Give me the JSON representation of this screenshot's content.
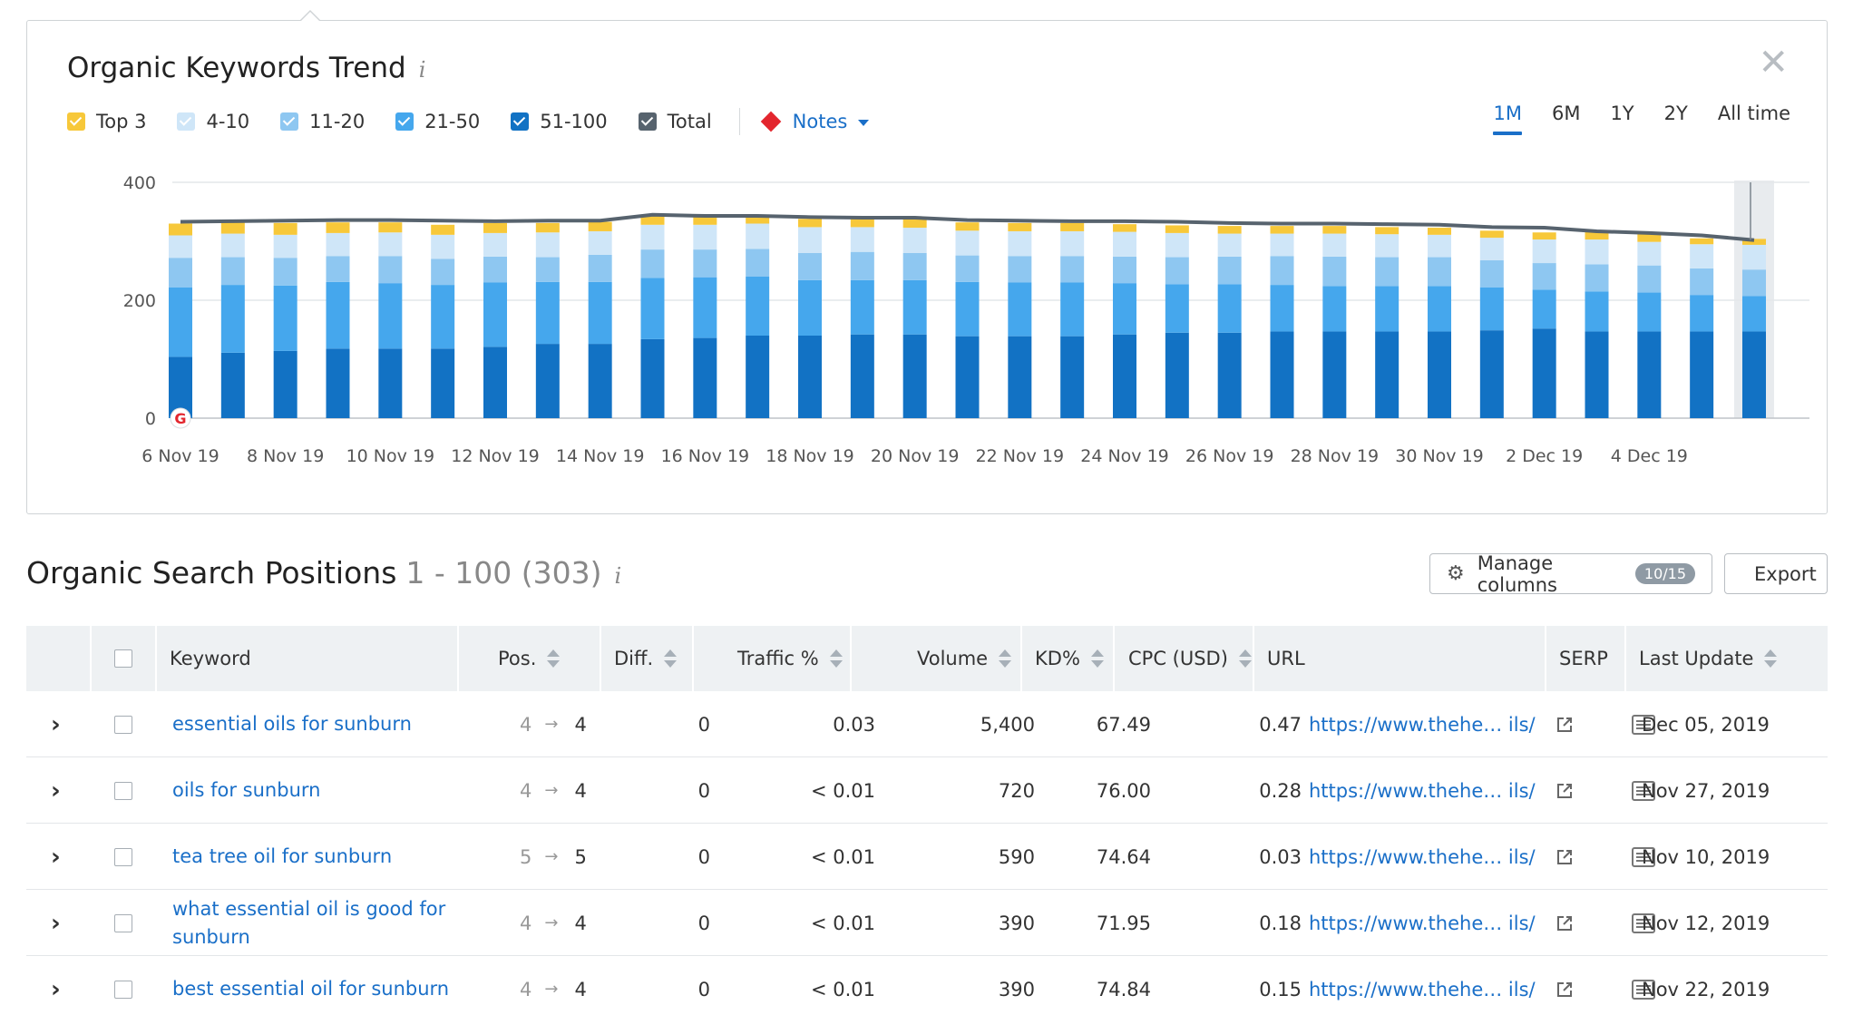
{
  "trend": {
    "title": "Organic Keywords Trend",
    "info_glyph": "i",
    "close_glyph": "✕",
    "legend": [
      {
        "label": "Top 3",
        "color": "#f7c83a"
      },
      {
        "label": "4-10",
        "color": "#cfe6f8"
      },
      {
        "label": "11-20",
        "color": "#8ec7f1"
      },
      {
        "label": "21-50",
        "color": "#45a7ed"
      },
      {
        "label": "51-100",
        "color": "#1272c4"
      },
      {
        "label": "Total",
        "color": "#57636e"
      }
    ],
    "notes_label": "Notes",
    "periods": [
      "1M",
      "6M",
      "1Y",
      "2Y",
      "All time"
    ],
    "active_period": "1M"
  },
  "chart_data": {
    "type": "bar",
    "stacked": true,
    "y_ticks": [
      "0",
      "200",
      "400"
    ],
    "ylim": [
      0,
      400
    ],
    "x_tick_labels": [
      "6 Nov 19",
      "8 Nov 19",
      "10 Nov 19",
      "12 Nov 19",
      "14 Nov 19",
      "16 Nov 19",
      "18 Nov 19",
      "20 Nov 19",
      "22 Nov 19",
      "24 Nov 19",
      "26 Nov 19",
      "28 Nov 19",
      "30 Nov 19",
      "2 Dec 19",
      "4 Dec 19"
    ],
    "categories": [
      "6 Nov 19",
      "7 Nov 19",
      "8 Nov 19",
      "9 Nov 19",
      "10 Nov 19",
      "11 Nov 19",
      "12 Nov 19",
      "13 Nov 19",
      "14 Nov 19",
      "15 Nov 19",
      "16 Nov 19",
      "17 Nov 19",
      "18 Nov 19",
      "19 Nov 19",
      "20 Nov 19",
      "21 Nov 19",
      "22 Nov 19",
      "23 Nov 19",
      "24 Nov 19",
      "25 Nov 19",
      "26 Nov 19",
      "27 Nov 19",
      "28 Nov 19",
      "29 Nov 19",
      "30 Nov 19",
      "1 Dec 19",
      "2 Dec 19",
      "3 Dec 19",
      "4 Dec 19",
      "5 Dec 19",
      "6 Dec 19"
    ],
    "series": [
      {
        "name": "51-100",
        "color": "#1272c4",
        "values": [
          104,
          111,
          114,
          118,
          118,
          118,
          121,
          126,
          126,
          134,
          136,
          140,
          140,
          142,
          142,
          139,
          139,
          139,
          142,
          145,
          145,
          147,
          147,
          147,
          147,
          149,
          152,
          147,
          147,
          147,
          147
        ]
      },
      {
        "name": "21-50",
        "color": "#45a7ed",
        "values": [
          118,
          115,
          111,
          113,
          111,
          108,
          109,
          105,
          105,
          104,
          103,
          100,
          94,
          92,
          92,
          92,
          91,
          91,
          87,
          82,
          82,
          79,
          77,
          77,
          77,
          73,
          66,
          68,
          66,
          62,
          60
        ]
      },
      {
        "name": "11-20",
        "color": "#8ec7f1",
        "values": [
          50,
          47,
          47,
          44,
          46,
          44,
          44,
          42,
          46,
          48,
          47,
          47,
          46,
          48,
          46,
          45,
          45,
          45,
          45,
          46,
          47,
          49,
          50,
          49,
          49,
          46,
          45,
          46,
          46,
          45,
          45
        ]
      },
      {
        "name": "4-10",
        "color": "#cfe6f8",
        "values": [
          38,
          40,
          39,
          39,
          40,
          41,
          40,
          42,
          40,
          42,
          42,
          43,
          44,
          42,
          43,
          42,
          42,
          42,
          42,
          41,
          39,
          38,
          39,
          39,
          38,
          38,
          40,
          42,
          40,
          41,
          42
        ]
      },
      {
        "name": "Top 3",
        "color": "#f7c83a",
        "values": [
          20,
          19,
          20,
          18,
          17,
          17,
          17,
          16,
          16,
          15,
          14,
          14,
          14,
          14,
          14,
          14,
          14,
          14,
          13,
          13,
          13,
          13,
          13,
          12,
          12,
          12,
          12,
          14,
          14,
          10,
          10
        ]
      }
    ],
    "total_line": {
      "name": "Total",
      "color": "#57636e",
      "values": [
        333,
        334,
        335,
        336,
        336,
        335,
        334,
        335,
        335,
        345,
        343,
        343,
        341,
        340,
        340,
        336,
        335,
        334,
        334,
        333,
        331,
        330,
        330,
        329,
        328,
        324,
        323,
        317,
        314,
        310,
        302
      ]
    }
  },
  "positions": {
    "title": "Organic Search Positions",
    "range": "1 - 100 (303)",
    "info_glyph": "i",
    "manage_columns_label": "Manage columns",
    "manage_columns_badge": "10/15",
    "export_label": "Export",
    "columns": {
      "keyword": "Keyword",
      "pos": "Pos.",
      "diff": "Diff.",
      "traffic": "Traffic %",
      "volume": "Volume",
      "kd": "KD%",
      "cpc": "CPC (USD)",
      "url": "URL",
      "serp": "SERP",
      "last_update": "Last Update"
    },
    "rows": [
      {
        "keyword": "essential oils for sunburn",
        "pos_prev": "4",
        "pos_cur": "4",
        "diff": "0",
        "traffic": "0.03",
        "volume": "5,400",
        "kd": "67.49",
        "cpc": "0.47",
        "url": "https://www.thehe… ils/",
        "last_update": "Dec 05, 2019"
      },
      {
        "keyword": "oils for sunburn",
        "pos_prev": "4",
        "pos_cur": "4",
        "diff": "0",
        "traffic": "< 0.01",
        "volume": "720",
        "kd": "76.00",
        "cpc": "0.28",
        "url": "https://www.thehe… ils/",
        "last_update": "Nov 27, 2019"
      },
      {
        "keyword": "tea tree oil for sunburn",
        "pos_prev": "5",
        "pos_cur": "5",
        "diff": "0",
        "traffic": "< 0.01",
        "volume": "590",
        "kd": "74.64",
        "cpc": "0.03",
        "url": "https://www.thehe… ils/",
        "last_update": "Nov 10, 2019"
      },
      {
        "keyword": "what essential oil is good for sunburn",
        "pos_prev": "4",
        "pos_cur": "4",
        "diff": "0",
        "traffic": "< 0.01",
        "volume": "390",
        "kd": "71.95",
        "cpc": "0.18",
        "url": "https://www.thehe… ils/",
        "last_update": "Nov 12, 2019"
      },
      {
        "keyword": "best essential oil for sunburn",
        "pos_prev": "4",
        "pos_cur": "4",
        "diff": "0",
        "traffic": "< 0.01",
        "volume": "390",
        "kd": "74.84",
        "cpc": "0.15",
        "url": "https://www.thehe… ils/",
        "last_update": "Nov 22, 2019"
      }
    ]
  }
}
